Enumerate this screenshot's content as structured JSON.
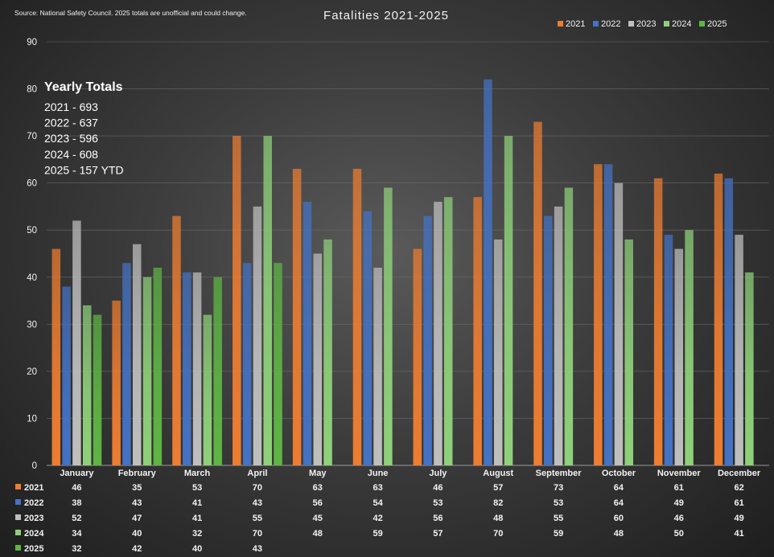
{
  "chart_data": {
    "type": "bar",
    "title": "Fatalities 2021-2025",
    "source": "Source:   National Safety Council. 2025 totals are unofficial and could change.",
    "categories": [
      "January",
      "February",
      "March",
      "April",
      "May",
      "June",
      "July",
      "August",
      "September",
      "October",
      "November",
      "December"
    ],
    "ylim": [
      0,
      90
    ],
    "yticks": [
      0,
      10,
      20,
      30,
      40,
      50,
      60,
      70,
      80,
      90
    ],
    "grid": true,
    "legend_position": "top-right",
    "series": [
      {
        "name": "2021",
        "color": "#ed7d31",
        "values": [
          46,
          35,
          53,
          70,
          63,
          63,
          46,
          57,
          73,
          64,
          61,
          62
        ]
      },
      {
        "name": "2022",
        "color": "#4472c4",
        "values": [
          38,
          43,
          41,
          43,
          56,
          54,
          53,
          82,
          53,
          64,
          49,
          61
        ]
      },
      {
        "name": "2023",
        "color": "#bfbfbf",
        "values": [
          52,
          47,
          41,
          55,
          45,
          42,
          56,
          48,
          55,
          60,
          46,
          49
        ]
      },
      {
        "name": "2024",
        "color": "#8fd17a",
        "values": [
          34,
          40,
          32,
          70,
          48,
          59,
          57,
          70,
          59,
          48,
          50,
          41
        ]
      },
      {
        "name": "2025",
        "color": "#5fb544",
        "values": [
          32,
          42,
          40,
          43,
          null,
          null,
          null,
          null,
          null,
          null,
          null,
          null
        ]
      }
    ],
    "annotation": {
      "heading": "Yearly Totals",
      "lines": [
        "2021 - 693",
        "2022 - 637",
        "2023 - 596",
        "2024 - 608",
        "2025 - 157 YTD"
      ]
    },
    "data_table": {
      "rows": [
        {
          "label": "2021",
          "cells": [
            "46",
            "35",
            "53",
            "70",
            "63",
            "63",
            "46",
            "57",
            "73",
            "64",
            "61",
            "62"
          ]
        },
        {
          "label": "2022",
          "cells": [
            "38",
            "43",
            "41",
            "43",
            "56",
            "54",
            "53",
            "82",
            "53",
            "64",
            "49",
            "61"
          ]
        },
        {
          "label": "2023",
          "cells": [
            "52",
            "47",
            "41",
            "55",
            "45",
            "42",
            "56",
            "48",
            "55",
            "60",
            "46",
            "49"
          ]
        },
        {
          "label": "2024",
          "cells": [
            "34",
            "40",
            "32",
            "70",
            "48",
            "59",
            "57",
            "70",
            "59",
            "48",
            "50",
            "41"
          ]
        },
        {
          "label": "2025",
          "cells": [
            "32",
            "42",
            "40",
            "43",
            "",
            "",
            "",
            "",
            "",
            "",
            "",
            ""
          ]
        }
      ]
    }
  }
}
